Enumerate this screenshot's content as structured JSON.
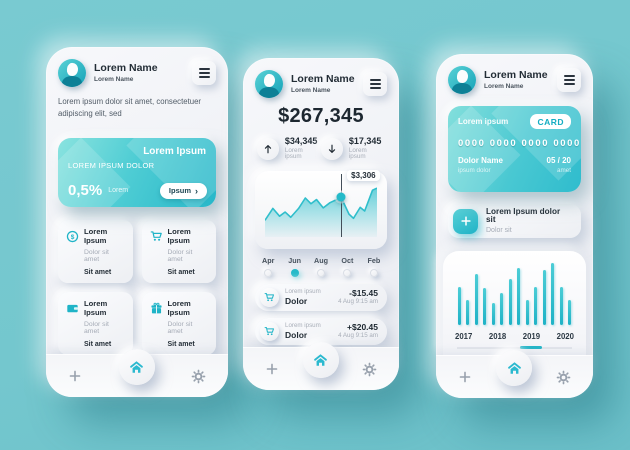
{
  "colors": {
    "background": "#74c7ce",
    "phone_body": "#f0f1f5",
    "accent": "#29b9c9",
    "accent_deep": "#18aec3",
    "text_dark": "#232d36",
    "text_gray": "#a5abb6",
    "nav_icon_gray": "#97a0ac",
    "promo_gradient": [
      "#8ae3df",
      "#27b7c9"
    ],
    "credit_card_gradient": [
      "#83dfdc",
      "#2fbccd"
    ]
  },
  "nav": {
    "icons": [
      "plus-icon",
      "home-icon",
      "gear-icon"
    ]
  },
  "phones": [
    {
      "header": {
        "name": "Lorem Name",
        "subtitle": "Lorem Name"
      },
      "paragraph": "Lorem ipsum dolor sit amet, consectetuer adipiscing elit, sed",
      "promo_card": {
        "title": "Lorem Ipsum",
        "subtitle": "LOREM IPSUM DOLOR",
        "rate": "0,5%",
        "rate_label": "Lorem",
        "button_label": "Ipsum",
        "button_arrow": "›"
      },
      "grid_cards": [
        {
          "icon": "coin-icon",
          "title": "Lorem Ipsum",
          "subtitle": "Dolor sit amet",
          "footer": "Sit amet"
        },
        {
          "icon": "cart-icon",
          "title": "Lorem Ipsum",
          "subtitle": "Dolor sit amet",
          "footer": "Sit amet"
        },
        {
          "icon": "wallet-icon",
          "title": "Lorem Ipsum",
          "subtitle": "Dolor sit amet",
          "footer": "Sit amet"
        },
        {
          "icon": "gift-icon",
          "title": "Lorem Ipsum",
          "subtitle": "Dolor sit amet",
          "footer": "Sit amet"
        }
      ]
    },
    {
      "header": {
        "name": "Lorem Name",
        "subtitle": "Lorem Name"
      },
      "balance": "$267,345",
      "stats": [
        {
          "direction": "up",
          "icon": "arrow-up-icon",
          "amount": "$34,345",
          "label": "Lorem ipsum"
        },
        {
          "direction": "down",
          "icon": "arrow-down-icon",
          "amount": "$17,345",
          "label": "Lorem ipsum"
        }
      ],
      "months_selected_index": 1,
      "transactions": [
        {
          "icon": "cart-icon",
          "label": "Lorem ipsum",
          "name": "Dolor",
          "amount": "-$15.45",
          "date": "4 Aug 9:15 am"
        },
        {
          "icon": "cart-icon",
          "label": "Lorem ipsum",
          "name": "Dolor",
          "amount": "+$20.45",
          "date": "4 Aug 9:15 am"
        }
      ]
    },
    {
      "header": {
        "name": "Lorem Name",
        "subtitle": "Lorem Name"
      },
      "credit_card": {
        "label": "Lorem ipsum",
        "badge": "CARD",
        "number": "0000 0000 0000 0000",
        "holder": "Dolor Name",
        "holder_sub": "ipsum dolor",
        "expiry": "05 / 20",
        "expiry_sub": "amet"
      },
      "add_row": {
        "icon": "plus-icon",
        "title": "Lorem Ipsum dolor sit",
        "subtitle": "Dolor sit"
      }
    }
  ],
  "chart_data": [
    {
      "type": "area",
      "title": "Balance trend (middle phone)",
      "x_axis_labels": [
        "Apr",
        "Jun",
        "Aug",
        "Oct",
        "Feb"
      ],
      "selected_x_label": "Jun",
      "marker": {
        "index": 11,
        "label": "$3,306"
      },
      "points": [
        [
          0,
          32
        ],
        [
          7,
          55
        ],
        [
          13,
          40
        ],
        [
          18,
          48
        ],
        [
          23,
          38
        ],
        [
          30,
          55
        ],
        [
          36,
          75
        ],
        [
          41,
          64
        ],
        [
          46,
          72
        ],
        [
          52,
          56
        ],
        [
          58,
          66
        ],
        [
          68,
          76
        ],
        [
          75,
          44
        ],
        [
          79,
          36
        ],
        [
          85,
          57
        ],
        [
          89,
          50
        ],
        [
          96,
          90
        ],
        [
          100,
          94
        ]
      ],
      "y_unit": "relative-height-percent",
      "grid": false,
      "legend": false
    },
    {
      "type": "bar",
      "title": "Yearly activity (right phone)",
      "year_labels": [
        "2017",
        "",
        "2018",
        "",
        "2019",
        "",
        "2020"
      ],
      "selected_label": "2019",
      "selected_slot": 4,
      "groups": [
        [
          62,
          40
        ],
        [
          82,
          60
        ],
        [
          36,
          52
        ],
        [
          74,
          92
        ],
        [
          40,
          62
        ],
        [
          88,
          100
        ],
        [
          62,
          40
        ]
      ],
      "y_unit": "relative-height-percent",
      "grid": false,
      "legend": false
    }
  ]
}
